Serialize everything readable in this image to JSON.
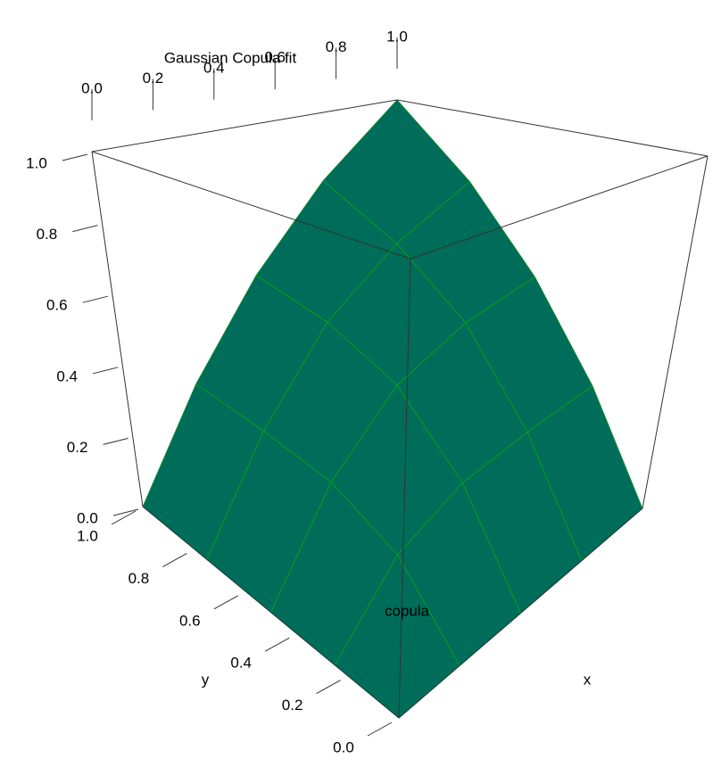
{
  "chart_data": {
    "type": "surface3d",
    "title": "Gaussian Copula fit",
    "xlabel": "x",
    "ylabel": "y",
    "zlabel": "copula",
    "xlim": [
      0,
      1
    ],
    "ylim": [
      0,
      1
    ],
    "zlim": [
      0,
      1
    ],
    "xticks": [
      {
        "value": 0,
        "label": "0.0"
      },
      0.2,
      0.4,
      0.6,
      0.8,
      {
        "value": 1,
        "label": "1.0"
      }
    ],
    "yticks": [
      {
        "value": 0,
        "label": "0.0"
      },
      0.2,
      0.4,
      0.6,
      0.8,
      {
        "value": 1,
        "label": "1.0"
      }
    ],
    "zticks": [
      {
        "value": 0,
        "label": "0.0"
      },
      0.2,
      0.4,
      0.6,
      0.8,
      {
        "value": 1,
        "label": "1.0"
      }
    ],
    "grid_x": [
      0,
      0.25,
      0.5,
      0.75,
      1
    ],
    "grid_y": [
      0,
      0.25,
      0.5,
      0.75,
      1
    ],
    "surfaces": [
      {
        "color": "#0000e0",
        "z": [
          [
            0,
            0,
            0,
            0,
            0
          ],
          [
            0,
            0.14,
            0.21,
            0.24,
            0.25
          ],
          [
            0,
            0.21,
            0.37,
            0.46,
            0.5
          ],
          [
            0,
            0.24,
            0.46,
            0.63,
            0.75
          ],
          [
            0,
            0.25,
            0.5,
            0.75,
            1
          ]
        ]
      },
      {
        "color": "#00b400",
        "z": [
          [
            0,
            0,
            0,
            0,
            0
          ],
          [
            0,
            0.15,
            0.22,
            0.24,
            0.25
          ],
          [
            0,
            0.22,
            0.38,
            0.46,
            0.5
          ],
          [
            0,
            0.24,
            0.46,
            0.62,
            0.75
          ],
          [
            0,
            0.25,
            0.5,
            0.75,
            1
          ]
        ]
      }
    ]
  }
}
